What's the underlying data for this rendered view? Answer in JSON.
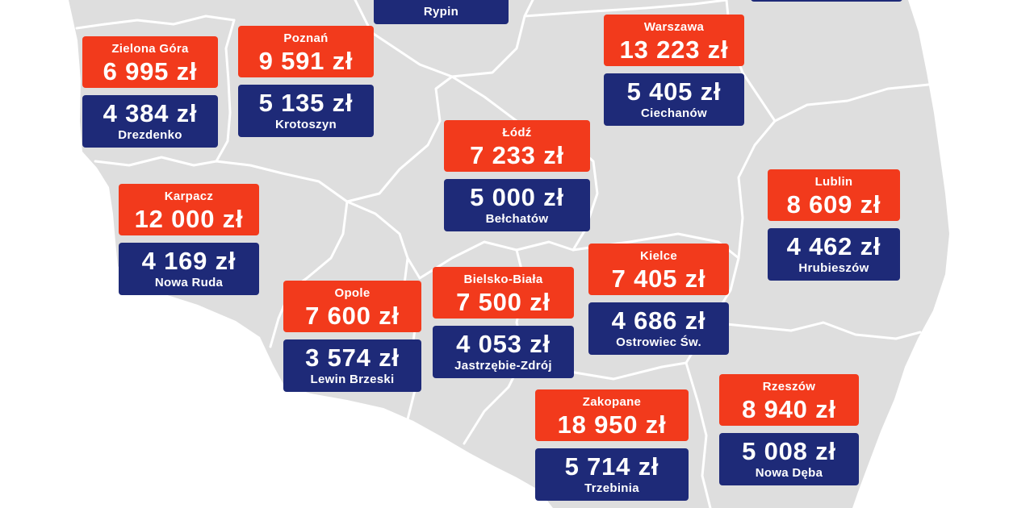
{
  "colors": {
    "red": "#f23a1c",
    "navy": "#1e2a78",
    "map": "#dedede",
    "border": "#ffffff",
    "text": "#ffffff"
  },
  "labels": [
    {
      "top": {
        "city": "Zielona Góra",
        "price": "6 995 zł"
      },
      "bottom": {
        "price": "4 384 zł",
        "city": "Drezdenko"
      }
    },
    {
      "top": {
        "city": "Poznań",
        "price": "9 591 zł"
      },
      "bottom": {
        "price": "5 135 zł",
        "city": "Krotoszyn"
      }
    },
    {
      "top": {
        "city": "Warszawa",
        "price": "13 223 zł"
      },
      "bottom": {
        "price": "5 405 zł",
        "city": "Ciechanów"
      }
    },
    {
      "top": {
        "city": "Łódź",
        "price": "7 233 zł"
      },
      "bottom": {
        "price": "5 000 zł",
        "city": "Bełchatów"
      }
    },
    {
      "top": {
        "city": "Karpacz",
        "price": "12 000 zł"
      },
      "bottom": {
        "price": "4 169 zł",
        "city": "Nowa Ruda"
      }
    },
    {
      "top": {
        "city": "Lublin",
        "price": "8 609 zł"
      },
      "bottom": {
        "price": "4 462 zł",
        "city": "Hrubieszów"
      }
    },
    {
      "top": {
        "city": "Kielce",
        "price": "7 405 zł"
      },
      "bottom": {
        "price": "4 686 zł",
        "city": "Ostrowiec Św."
      }
    },
    {
      "top": {
        "city": "Opole",
        "price": "7 600 zł"
      },
      "bottom": {
        "price": "3 574 zł",
        "city": "Lewin Brzeski"
      }
    },
    {
      "top": {
        "city": "Bielsko-Biała",
        "price": "7 500 zł"
      },
      "bottom": {
        "price": "4 053 zł",
        "city": "Jastrzębie-Zdrój"
      }
    },
    {
      "top": {
        "city": "Rzeszów",
        "price": "8 940 zł"
      },
      "bottom": {
        "price": "5 008 zł",
        "city": "Nowa Dęba"
      }
    },
    {
      "top": {
        "city": "Zakopane",
        "price": "18 950 zł"
      },
      "bottom": {
        "price": "5 714 zł",
        "city": "Trzebinia"
      }
    }
  ],
  "partial_labels": [
    {
      "city": "Rypin"
    }
  ]
}
